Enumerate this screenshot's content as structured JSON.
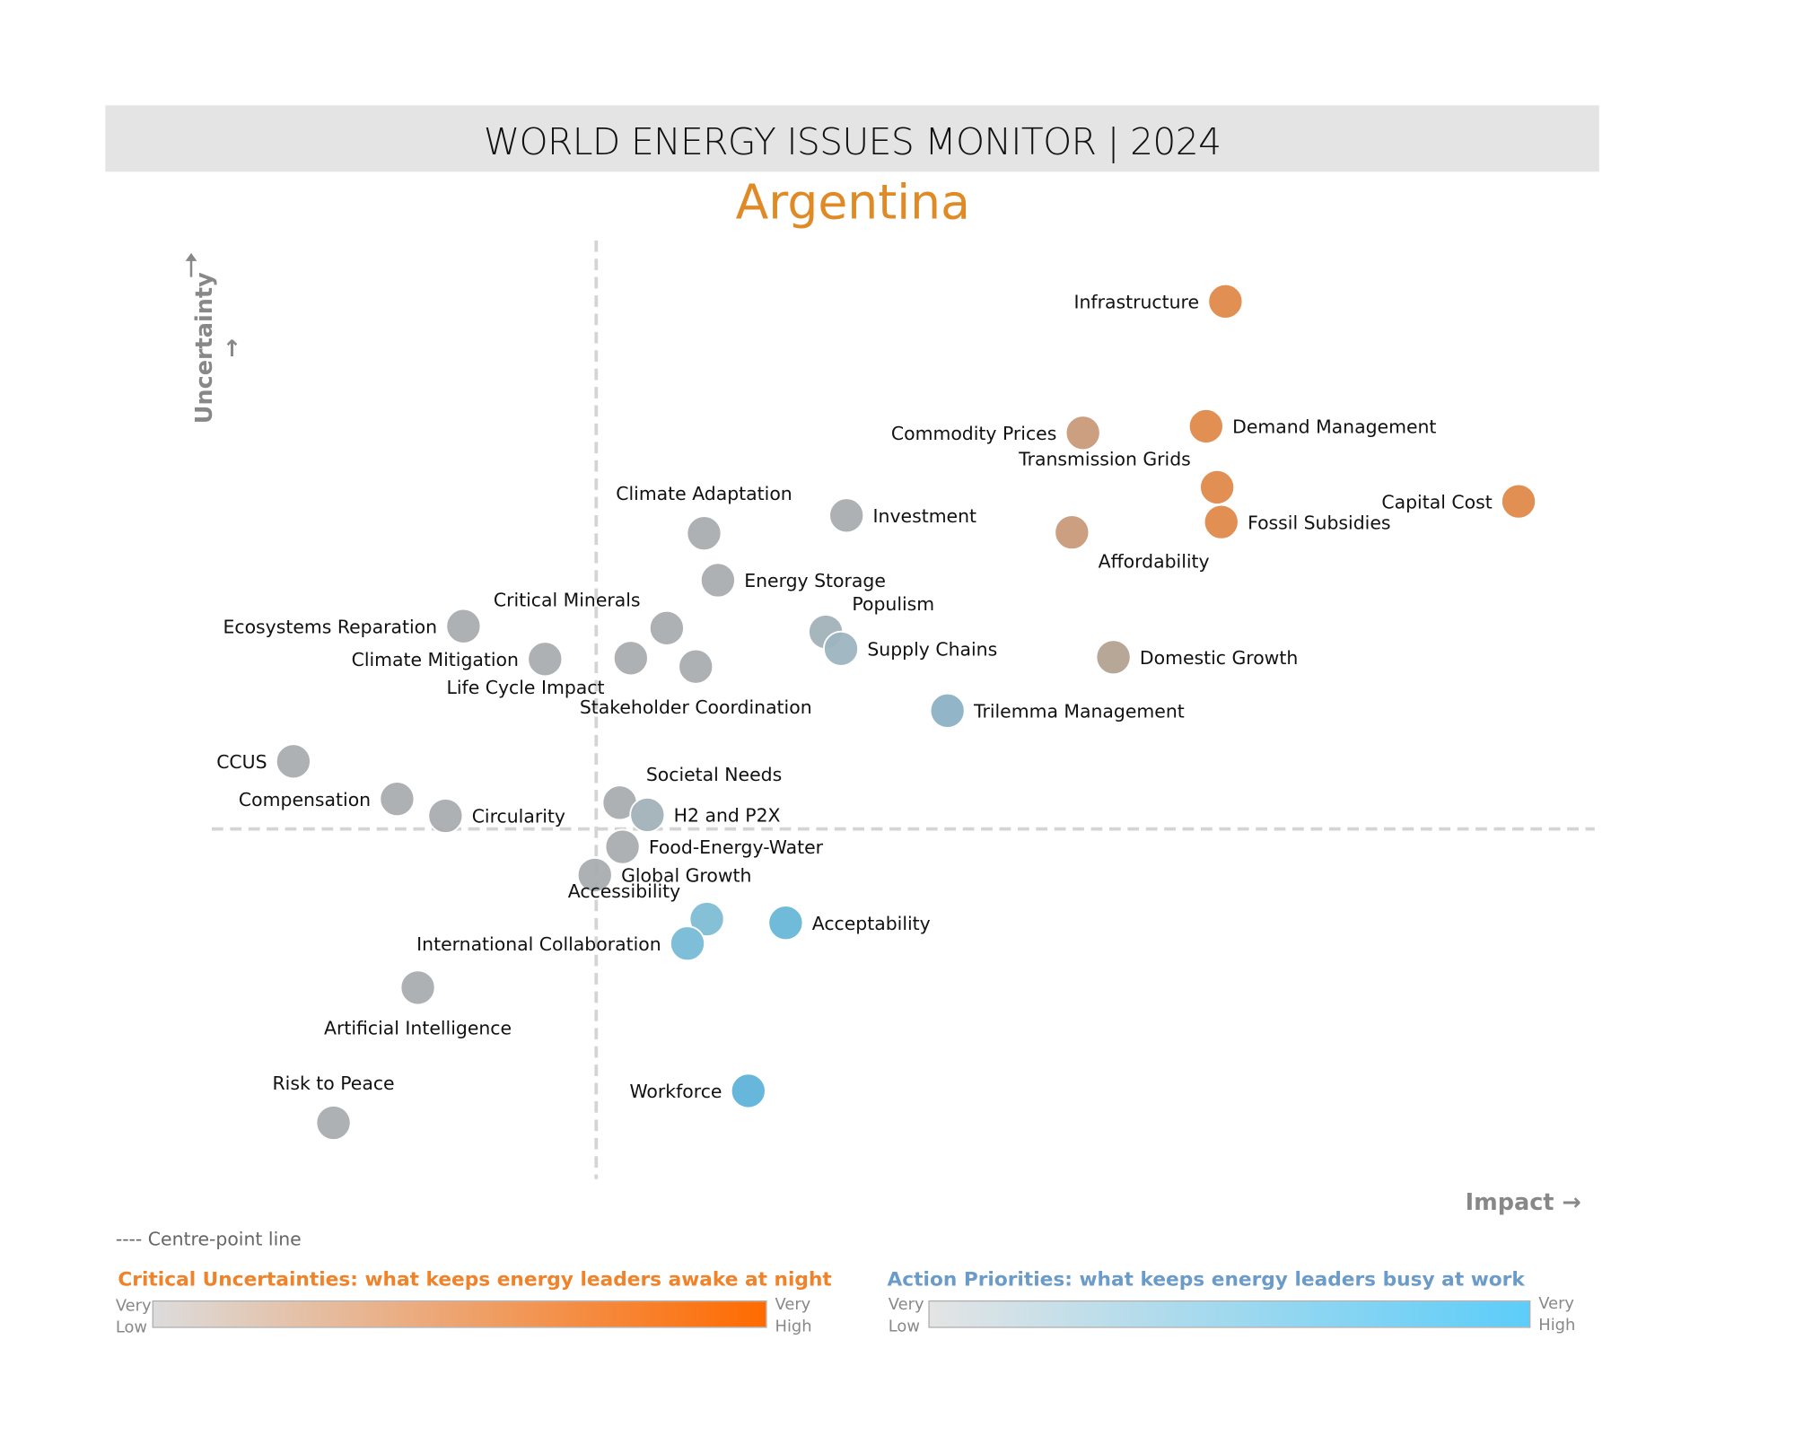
{
  "header": {
    "title": "WORLD ENERGY ISSUES MONITOR | 2024",
    "country": "Argentina"
  },
  "legend": {
    "centre_line": "---- Centre-point line",
    "critical": {
      "title": "Critical Uncertainties: what keeps energy leaders awake at night",
      "low": "Very\nLow",
      "high": "Very\nHigh",
      "color_low": "#dcdcdc",
      "color_high": "#ff6a00",
      "title_color": "#f0832a"
    },
    "action": {
      "title": "Action Priorities: what keeps energy leaders busy at work",
      "low": "Very\nLow",
      "high": "Very\nHigh",
      "color_low": "#e4e4e4",
      "color_high": "#5ccdf9",
      "title_color": "#6b9cc9"
    }
  },
  "chart_data": {
    "type": "scatter",
    "title": "Argentina",
    "xlabel": "Impact →",
    "ylabel": "Uncertainty →",
    "xlim": [
      0,
      10
    ],
    "ylim": [
      0,
      10
    ],
    "centre": {
      "x": 2.78,
      "y": 3.73
    },
    "grid": false,
    "points": [
      {
        "name": "Infrastructure",
        "x": 7.33,
        "y": 9.35,
        "color": "#e0894a",
        "label": "left"
      },
      {
        "name": "Demand Management",
        "x": 7.19,
        "y": 8.02,
        "color": "#e0894a",
        "label": "right"
      },
      {
        "name": "Commodity Prices",
        "x": 6.3,
        "y": 7.95,
        "color": "#c99a7a",
        "label": "left"
      },
      {
        "name": "Transmission Grids",
        "x": 7.27,
        "y": 7.37,
        "color": "#e0894a",
        "label": "top-left"
      },
      {
        "name": "Fossil Subsidies",
        "x": 7.3,
        "y": 7.0,
        "color": "#e0894a",
        "label": "right"
      },
      {
        "name": "Capital Cost",
        "x": 9.45,
        "y": 7.22,
        "color": "#e0894a",
        "label": "left"
      },
      {
        "name": "Affordability",
        "x": 6.22,
        "y": 6.89,
        "color": "#c99a7a",
        "label": "bottom-right"
      },
      {
        "name": "Investment",
        "x": 4.59,
        "y": 7.07,
        "color": "#a9adb0",
        "label": "right"
      },
      {
        "name": "Climate Adaptation",
        "x": 3.56,
        "y": 6.88,
        "color": "#a9adb0",
        "label": "top"
      },
      {
        "name": "Energy Storage",
        "x": 3.66,
        "y": 6.38,
        "color": "#a9adb0",
        "label": "right"
      },
      {
        "name": "Critical Minerals",
        "x": 3.29,
        "y": 5.87,
        "color": "#a9adb0",
        "label": "top-left"
      },
      {
        "name": "Ecosystems Reparation",
        "x": 1.82,
        "y": 5.89,
        "color": "#a9adb0",
        "label": "left"
      },
      {
        "name": "Climate Mitigation",
        "x": 2.41,
        "y": 5.54,
        "color": "#a9adb0",
        "label": "left"
      },
      {
        "name": "Life Cycle Impact",
        "x": 3.03,
        "y": 5.55,
        "color": "#a9adb0",
        "label": "bottom-left"
      },
      {
        "name": "Stakeholder Coordination",
        "x": 3.5,
        "y": 5.46,
        "color": "#a9adb0",
        "label": "bottom"
      },
      {
        "name": "Populism",
        "x": 4.44,
        "y": 5.83,
        "color": "#a3b2ba",
        "label": "top-right"
      },
      {
        "name": "Supply Chains",
        "x": 4.55,
        "y": 5.65,
        "color": "#9db5c0",
        "label": "right"
      },
      {
        "name": "Domestic Growth",
        "x": 6.52,
        "y": 5.56,
        "color": "#b3a392",
        "label": "right"
      },
      {
        "name": "Trilemma Management",
        "x": 5.32,
        "y": 4.99,
        "color": "#8db3c4",
        "label": "right"
      },
      {
        "name": "CCUS",
        "x": 0.59,
        "y": 4.45,
        "color": "#a9adb0",
        "label": "left"
      },
      {
        "name": "Compensation",
        "x": 1.34,
        "y": 4.05,
        "color": "#a9adb0",
        "label": "left"
      },
      {
        "name": "Circularity",
        "x": 1.69,
        "y": 3.87,
        "color": "#a9adb0",
        "label": "right"
      },
      {
        "name": "Societal Needs",
        "x": 2.95,
        "y": 4.01,
        "color": "#a9adb0",
        "label": "top-right"
      },
      {
        "name": "H2 and P2X",
        "x": 3.15,
        "y": 3.88,
        "color": "#a3b2ba",
        "label": "right"
      },
      {
        "name": "Food-Energy-Water",
        "x": 2.97,
        "y": 3.54,
        "color": "#a9adb0",
        "label": "right"
      },
      {
        "name": "Global Growth",
        "x": 2.77,
        "y": 3.24,
        "color": "#a9adb0",
        "label": "right"
      },
      {
        "name": "Accessibility",
        "x": 3.58,
        "y": 2.77,
        "color": "#7fbdd4",
        "label": "top-left"
      },
      {
        "name": "Acceptability",
        "x": 4.15,
        "y": 2.73,
        "color": "#6ab8d8",
        "label": "right"
      },
      {
        "name": "International Collaboration",
        "x": 3.44,
        "y": 2.51,
        "color": "#78bbd6",
        "label": "left"
      },
      {
        "name": "Artificial Intelligence",
        "x": 1.49,
        "y": 2.04,
        "color": "#a9adb0",
        "label": "bottom"
      },
      {
        "name": "Risk to Peace",
        "x": 0.88,
        "y": 0.6,
        "color": "#a9adb0",
        "label": "top"
      },
      {
        "name": "Workforce",
        "x": 3.88,
        "y": 0.94,
        "color": "#5fb4db",
        "label": "left"
      }
    ]
  }
}
